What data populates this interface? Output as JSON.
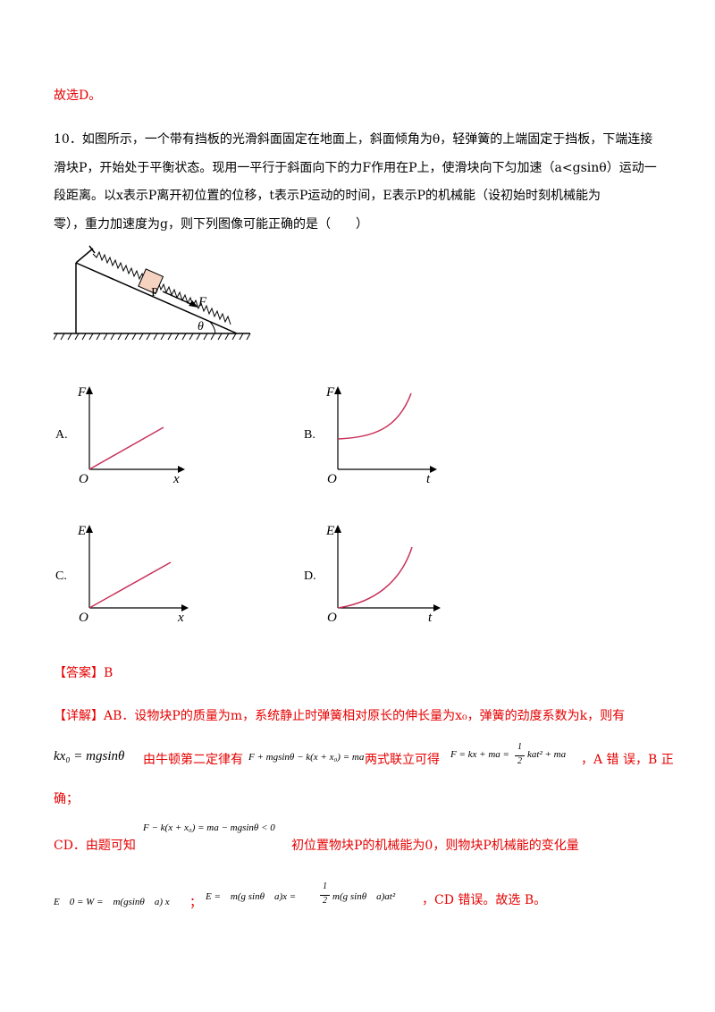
{
  "prev_answer": "故选D。",
  "question": {
    "line1": "10．如图所示，一个带有挡板的光滑斜面固定在地面上，斜面倾角为θ，轻弹簧的上端固定于挡板，下端连接",
    "line2": "滑块P，开始处于平衡状态。现用一平行于斜面向下的力F作用在P上，使滑块向下匀加速（a<gsinθ）运动一",
    "line3": "段距离。以x表示P离开初位置的位移，t表示P运动的时间，E表示P的机械能（设初始时刻机械能为",
    "line4": "零），重力加速度为g，则下列图像可能正确的是（　　）"
  },
  "figure": {
    "block_label": "P",
    "force_label": "F",
    "angle_label": "θ"
  },
  "options": [
    {
      "label": "A.",
      "y_axis": "F",
      "x_axis": "x",
      "origin": "O",
      "shape": "linear"
    },
    {
      "label": "B.",
      "y_axis": "F",
      "x_axis": "t",
      "origin": "O",
      "shape": "convex-offset"
    },
    {
      "label": "C.",
      "y_axis": "E",
      "x_axis": "x",
      "origin": "O",
      "shape": "linear"
    },
    {
      "label": "D.",
      "y_axis": "E",
      "x_axis": "t",
      "origin": "O",
      "shape": "convex"
    }
  ],
  "answer": {
    "tag": "【答案】",
    "value": "B"
  },
  "explanation": {
    "tag": "【详解】",
    "line1": "AB．设物块P的质量为m，系统静止时弹簧相对原长的伸长量为x₀，弹簧的劲度系数为k，则有",
    "eq1": "kx₀ = mgsinθ",
    "text1": "由牛顿第二定律有",
    "eq2": "F + mgsinθ − k(x + x₀) = ma",
    "text2": "两式联立可得",
    "eq3_lhs": "F = kx + ma =",
    "eq3_frac_num": "1",
    "eq3_frac_den": "2",
    "eq3_rhs": "kat² + ma",
    "text3": "，A 错 误，B 正",
    "line3": "确；",
    "cd_intro": "CD．由题可知",
    "eq4": "F − k(x + x₀) = ma − mgsinθ < 0",
    "cd_text": "初位置物块P的机械能为0，则物块P机械能的变化量",
    "eq5": "E　0 = W =　m(gsinθ　a) x",
    "sep": "；",
    "eq6_lhs": "E =　m(g sinθ　a)x =",
    "eq6_frac_num": "1",
    "eq6_frac_den": "2",
    "eq6_rhs": "m(g sinθ　a)at²",
    "ending": "，CD 错误。故选 B。"
  }
}
